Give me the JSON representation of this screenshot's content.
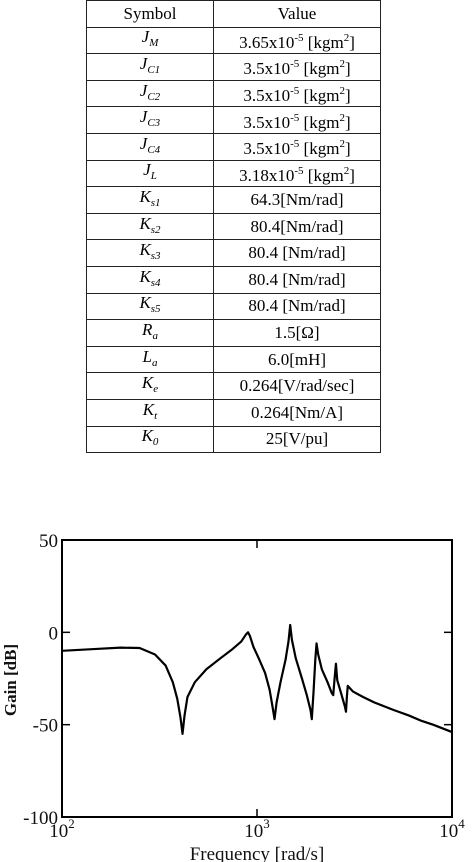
{
  "table": {
    "header": [
      "Symbol",
      "Value"
    ],
    "rows": [
      {
        "symbol": "J",
        "sub": "M",
        "value": {
          "pre": "3.65x10",
          "exp": "-5",
          "unit": " [kgm",
          "unit_exp": "2",
          "post": "]"
        }
      },
      {
        "symbol": "J",
        "sub": "C1",
        "value": {
          "pre": "3.5x10",
          "exp": "-5",
          "unit": " [kgm",
          "unit_exp": "2",
          "post": "]"
        }
      },
      {
        "symbol": "J",
        "sub": "C2",
        "value": {
          "pre": "3.5x10",
          "exp": "-5",
          "unit": " [kgm",
          "unit_exp": "2",
          "post": "]"
        }
      },
      {
        "symbol": "J",
        "sub": "C3",
        "value": {
          "pre": "3.5x10",
          "exp": "-5",
          "unit": " [kgm",
          "unit_exp": "2",
          "post": "]"
        }
      },
      {
        "symbol": "J",
        "sub": "C4",
        "value": {
          "pre": "3.5x10",
          "exp": "-5",
          "unit": " [kgm",
          "unit_exp": "2",
          "post": "]"
        }
      },
      {
        "symbol": "J",
        "sub": "L",
        "value": {
          "pre": "3.18x10",
          "exp": "-5",
          "unit": " [kgm",
          "unit_exp": "2",
          "post": "]"
        }
      },
      {
        "symbol": "K",
        "sub": "s1",
        "value": {
          "pre": "64.3[Nm/rad]"
        }
      },
      {
        "symbol": "K",
        "sub": "s2",
        "value": {
          "pre": "80.4[Nm/rad]"
        }
      },
      {
        "symbol": "K",
        "sub": "s3",
        "value": {
          "pre": "80.4 [Nm/rad]"
        }
      },
      {
        "symbol": "K",
        "sub": "s4",
        "value": {
          "pre": "80.4 [Nm/rad]"
        }
      },
      {
        "symbol": "K",
        "sub": "s5",
        "value": {
          "pre": "80.4 [Nm/rad]"
        }
      },
      {
        "symbol": "R",
        "sub": "a",
        "value": {
          "pre": "1.5[Ω]"
        }
      },
      {
        "symbol": "L",
        "sub": "a",
        "value": {
          "pre": "6.0[mH]"
        }
      },
      {
        "symbol": "K",
        "sub": "e",
        "value": {
          "pre": "0.264[V/rad/sec]"
        }
      },
      {
        "symbol": "K",
        "sub": "t",
        "value": {
          "pre": "0.264[Nm/A]"
        }
      },
      {
        "symbol": "K",
        "sub": "0",
        "value": {
          "pre": "25[V/pu]"
        }
      }
    ]
  },
  "chart_data": {
    "type": "line",
    "x_label": "Frequency [rad/s]",
    "y_label": "Gain [dB]",
    "x_scale": "log",
    "xlim": [
      100,
      10000
    ],
    "ylim": [
      -100,
      50
    ],
    "xticks": [
      {
        "value": 100,
        "label": "10",
        "exponent": "2"
      },
      {
        "value": 1000,
        "label": "10",
        "exponent": "3"
      },
      {
        "value": 10000,
        "label": "10",
        "exponent": "4"
      }
    ],
    "yticks": [
      50,
      0,
      -50,
      -100
    ],
    "x": [
      100,
      150,
      200,
      250,
      300,
      340,
      370,
      390,
      405,
      415,
      425,
      440,
      480,
      550,
      650,
      750,
      830,
      880,
      900,
      920,
      960,
      1020,
      1100,
      1160,
      1200,
      1230,
      1260,
      1320,
      1400,
      1450,
      1480,
      1510,
      1580,
      1700,
      1800,
      1880,
      1910,
      1950,
      1990,
      2020,
      2060,
      2150,
      2300,
      2420,
      2460,
      2500,
      2540,
      2580,
      2700,
      2820,
      2860,
      2890,
      2920,
      3100,
      3500,
      4000,
      5000,
      6000,
      7000,
      8000,
      10000
    ],
    "series": [
      {
        "color": "#000000",
        "values": [
          -10,
          -9,
          -8.3,
          -8.5,
          -12,
          -18,
          -27,
          -36,
          -46,
          -55,
          -45,
          -35,
          -27,
          -20,
          -14,
          -9,
          -5,
          -1,
          0,
          -2,
          -8,
          -14,
          -22,
          -31,
          -40,
          -47,
          -38,
          -27,
          -15,
          -5,
          4,
          -4,
          -14,
          -25,
          -34,
          -42,
          -47,
          -32,
          -15,
          -6,
          -12,
          -20,
          -27,
          -33,
          -34,
          -25,
          -17,
          -26,
          -33,
          -40,
          -43,
          -35,
          -29,
          -32,
          -35,
          -38,
          -42,
          -45,
          -48,
          -50,
          -54
        ]
      }
    ]
  }
}
